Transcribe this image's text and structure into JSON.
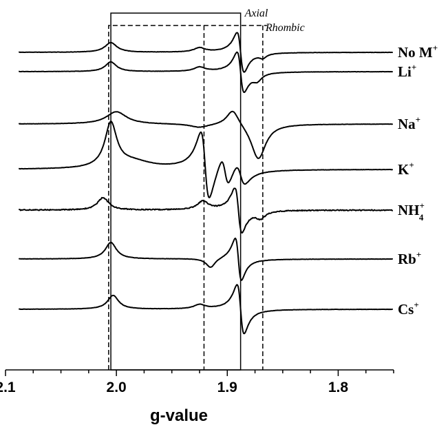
{
  "chart_data": {
    "type": "line",
    "xlabel": "g-value",
    "xlim": [
      2.1,
      1.75
    ],
    "x_reversed": true,
    "xticks": [
      2.1,
      2.0,
      1.9,
      1.8
    ],
    "xtick_labels": [
      "2.1",
      "2.0",
      "1.9",
      "1.8"
    ],
    "grid": false,
    "y_axis_shown": false,
    "annotations": [
      {
        "text": "Axial",
        "style": "solid",
        "g_values": [
          2.005,
          1.888
        ]
      },
      {
        "text": "Rhombic",
        "style": "dashed",
        "g_values": [
          2.007,
          1.921,
          1.868
        ]
      }
    ],
    "series": [
      {
        "name": "No M",
        "label_main": "No M",
        "label_sup": "+",
        "label_sub": "",
        "peaks": [
          {
            "g": 2.005,
            "amp": 14,
            "w": 0.0065,
            "kind": "abs"
          },
          {
            "g": 1.925,
            "amp": 6,
            "w": 0.006,
            "kind": "abs"
          },
          {
            "g": 1.888,
            "amp": 34,
            "w": 0.0045,
            "kind": "deriv"
          },
          {
            "g": 1.868,
            "amp": -6,
            "w": 0.004,
            "kind": "abs"
          }
        ]
      },
      {
        "name": "Li",
        "label_main": "Li",
        "label_sup": "+",
        "label_sub": "",
        "peaks": [
          {
            "g": 2.005,
            "amp": 14,
            "w": 0.006,
            "kind": "abs"
          },
          {
            "g": 1.925,
            "amp": 6,
            "w": 0.006,
            "kind": "abs"
          },
          {
            "g": 1.888,
            "amp": 34,
            "w": 0.0045,
            "kind": "deriv"
          },
          {
            "g": 1.873,
            "amp": -10,
            "w": 0.005,
            "kind": "abs"
          }
        ]
      },
      {
        "name": "Na",
        "label_main": "Na",
        "label_sup": "+",
        "label_sub": "",
        "peaks": [
          {
            "g": 2.0,
            "amp": 18,
            "w": 0.011,
            "kind": "abs"
          },
          {
            "g": 1.925,
            "amp": -5,
            "w": 0.01,
            "kind": "abs"
          },
          {
            "g": 1.895,
            "amp": 24,
            "w": 0.007,
            "kind": "abs"
          },
          {
            "g": 1.872,
            "amp": -52,
            "w": 0.008,
            "kind": "abs"
          }
        ]
      },
      {
        "name": "K",
        "label_main": "K",
        "label_sup": "+",
        "label_sub": "",
        "peaks": [
          {
            "g": 2.005,
            "amp": 64,
            "w": 0.0065,
            "kind": "abs"
          },
          {
            "g": 1.985,
            "amp": 10,
            "w": 0.02,
            "kind": "abs"
          },
          {
            "g": 1.92,
            "amp": 58,
            "w": 0.0055,
            "kind": "deriv"
          },
          {
            "g": 1.902,
            "amp": 24,
            "w": 0.005,
            "kind": "deriv"
          },
          {
            "g": 1.888,
            "amp": 18,
            "w": 0.006,
            "kind": "deriv"
          }
        ]
      },
      {
        "name": "NH4",
        "label_main": "NH",
        "label_sup": "+",
        "label_sub": "4",
        "peaks": [
          {
            "g": 2.012,
            "amp": 18,
            "w": 0.006,
            "kind": "abs"
          },
          {
            "g": 1.922,
            "amp": 12,
            "w": 0.006,
            "kind": "abs"
          },
          {
            "g": 1.89,
            "amp": 38,
            "w": 0.0045,
            "kind": "deriv"
          },
          {
            "g": 1.87,
            "amp": -10,
            "w": 0.005,
            "kind": "abs"
          }
        ]
      },
      {
        "name": "Rb",
        "label_main": "Rb",
        "label_sup": "+",
        "label_sub": "",
        "peaks": [
          {
            "g": 2.005,
            "amp": 24,
            "w": 0.006,
            "kind": "abs"
          },
          {
            "g": 1.915,
            "amp": -14,
            "w": 0.005,
            "kind": "abs"
          },
          {
            "g": 1.89,
            "amp": 36,
            "w": 0.004,
            "kind": "deriv"
          }
        ]
      },
      {
        "name": "Cs",
        "label_main": "Cs",
        "label_sup": "+",
        "label_sub": "",
        "peaks": [
          {
            "g": 2.003,
            "amp": 20,
            "w": 0.006,
            "kind": "abs"
          },
          {
            "g": 1.925,
            "amp": 6,
            "w": 0.006,
            "kind": "abs"
          },
          {
            "g": 1.888,
            "amp": 42,
            "w": 0.0045,
            "kind": "deriv"
          }
        ]
      }
    ]
  }
}
